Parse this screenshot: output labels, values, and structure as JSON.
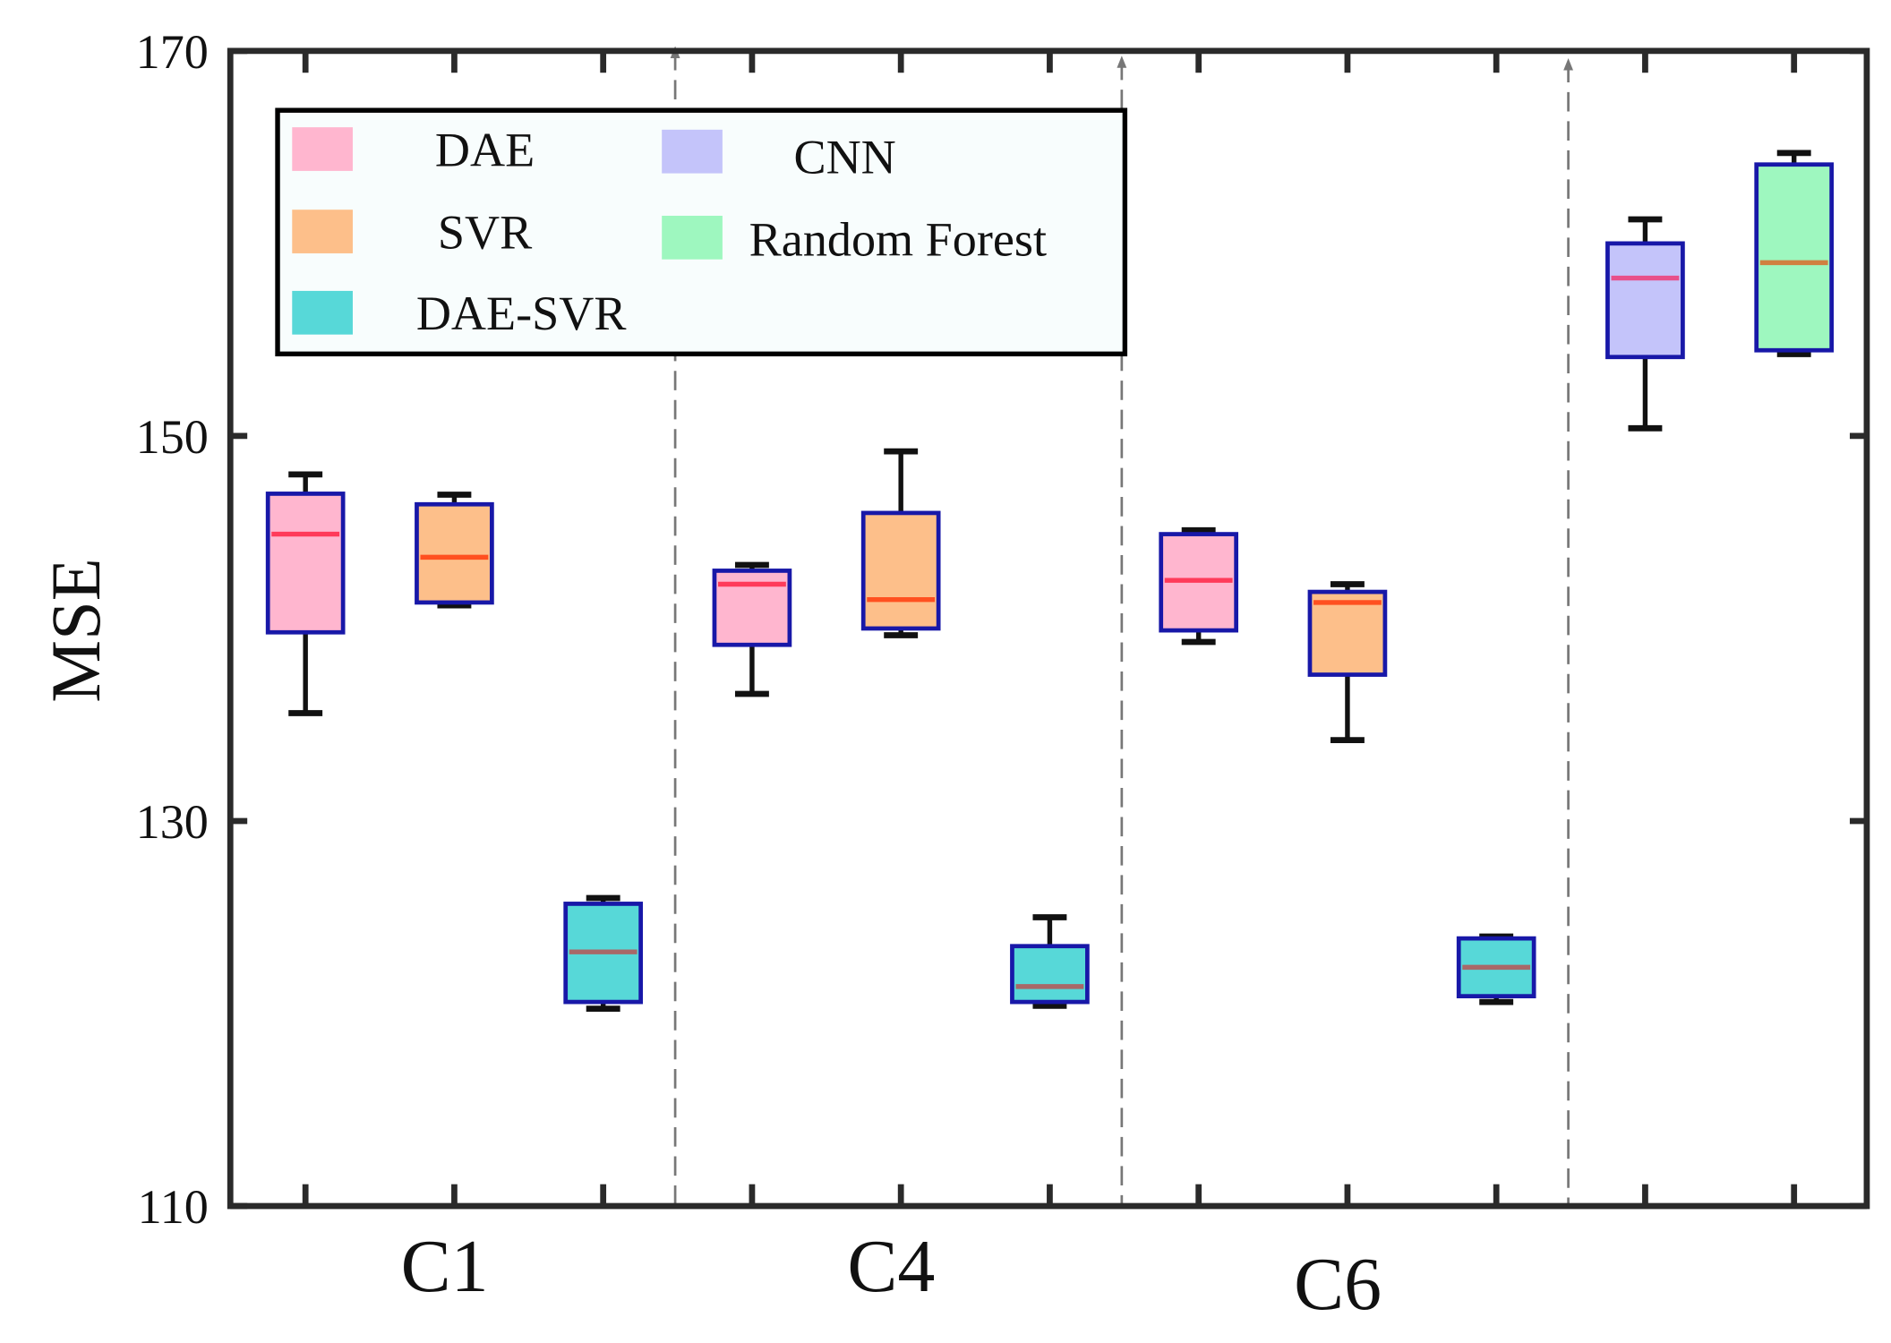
{
  "chart_data": {
    "type": "box",
    "title": "",
    "xlabel": "",
    "ylabel": "MSE",
    "ylim": [
      110,
      170
    ],
    "yticks": [
      110,
      130,
      150,
      170
    ],
    "group_labels": [
      "C1",
      "C4",
      "C6"
    ],
    "legend": {
      "placement": "top-left",
      "entries": [
        {
          "name": "DAE",
          "color": "#ffb6cf"
        },
        {
          "name": "SVR",
          "color": "#fdbf8a"
        },
        {
          "name": "DAE-SVR",
          "color": "#57d8d8"
        },
        {
          "name": "CNN",
          "color": "#c4c4fa"
        },
        {
          "name": "Random Forest",
          "color": "#9ef7bf"
        }
      ]
    },
    "boxes": [
      {
        "group": "C1",
        "model": "DAE",
        "min": 135.6,
        "q1": 139.8,
        "median": 144.9,
        "q3": 147.0,
        "max": 148.0,
        "median_color": "#ff3a5a"
      },
      {
        "group": "C1",
        "model": "SVR",
        "min": 141.2,
        "q1": 141.35,
        "median": 143.7,
        "q3": 146.45,
        "max": 146.95,
        "median_color": "#ff5020"
      },
      {
        "group": "C1",
        "model": "DAE-SVR",
        "min": 120.25,
        "q1": 120.6,
        "median": 123.2,
        "q3": 125.7,
        "max": 126.0,
        "median_color": "#a86868"
      },
      {
        "group": "C4",
        "model": "DAE",
        "min": 136.6,
        "q1": 139.15,
        "median": 142.3,
        "q3": 143.0,
        "max": 143.3,
        "median_color": "#ff3a5a"
      },
      {
        "group": "C4",
        "model": "SVR",
        "min": 139.65,
        "q1": 140.0,
        "median": 141.5,
        "q3": 146.0,
        "max": 149.2,
        "median_color": "#ff5020"
      },
      {
        "group": "C4",
        "model": "DAE-SVR",
        "min": 120.4,
        "q1": 120.6,
        "median": 121.4,
        "q3": 123.5,
        "max": 125.0,
        "median_color": "#a86868"
      },
      {
        "group": "C6",
        "model": "DAE",
        "min": 139.3,
        "q1": 139.9,
        "median": 142.5,
        "q3": 144.9,
        "max": 145.1,
        "median_color": "#ff3a5a"
      },
      {
        "group": "C6",
        "model": "SVR",
        "min": 134.2,
        "q1": 137.6,
        "median": 141.35,
        "q3": 141.9,
        "max": 142.3,
        "median_color": "#ff5020"
      },
      {
        "group": "C6",
        "model": "DAE-SVR",
        "min": 120.6,
        "q1": 120.9,
        "median": 122.4,
        "q3": 123.9,
        "max": 124.0,
        "median_color": "#a86868"
      },
      {
        "group": "",
        "model": "CNN",
        "min": 150.4,
        "q1": 154.1,
        "median": 158.2,
        "q3": 160.0,
        "max": 161.25,
        "median_color": "#e8508a"
      },
      {
        "group": "",
        "model": "Random Forest",
        "min": 154.25,
        "q1": 154.45,
        "median": 159.0,
        "q3": 164.1,
        "max": 164.7,
        "median_color": "#d08040"
      }
    ],
    "grid": false
  }
}
